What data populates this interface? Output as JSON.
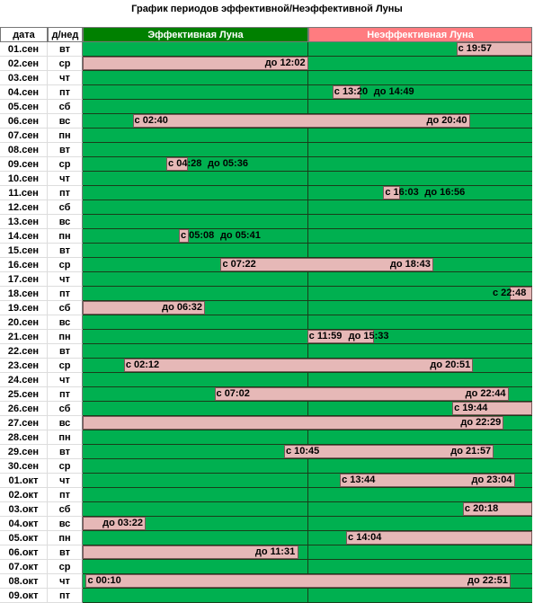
{
  "title": "График  периодов эффективной/Неэффективной Луны",
  "headers": {
    "date": "дата",
    "weekday": "д/нед",
    "effective": "Эффективная Луна",
    "ineffective": "Неэффективная Луна"
  },
  "colors": {
    "effective_green": "#00b050",
    "ineffective_pink": "#e6b8b7",
    "header_green": "#008000",
    "header_red": "#ff7c80"
  },
  "rows": [
    {
      "date": "01.сен",
      "day": "вт",
      "segments": [
        {
          "from": "19:57",
          "to": null
        }
      ],
      "labels": [
        "с 19:57"
      ]
    },
    {
      "date": "02.сен",
      "day": "ср",
      "segments": [
        {
          "from": null,
          "to": "12:02"
        }
      ],
      "labels": [
        "до 12:02"
      ]
    },
    {
      "date": "03.сен",
      "day": "чт",
      "segments": [],
      "labels": []
    },
    {
      "date": "04.сен",
      "day": "пт",
      "segments": [
        {
          "from": "13:20",
          "to": "14:49"
        }
      ],
      "labels": [
        "с 13:20",
        "до 14:49"
      ]
    },
    {
      "date": "05.сен",
      "day": "сб",
      "segments": [],
      "labels": []
    },
    {
      "date": "06.сен",
      "day": "вс",
      "segments": [
        {
          "from": "02:40",
          "to": "20:40"
        }
      ],
      "labels": [
        "с 02:40",
        "до 20:40"
      ]
    },
    {
      "date": "07.сен",
      "day": "пн",
      "segments": [],
      "labels": []
    },
    {
      "date": "08.сен",
      "day": "вт",
      "segments": [],
      "labels": []
    },
    {
      "date": "09.сен",
      "day": "ср",
      "segments": [
        {
          "from": "04:28",
          "to": "05:36"
        }
      ],
      "labels": [
        "с 04:28",
        "до 05:36"
      ]
    },
    {
      "date": "10.сен",
      "day": "чт",
      "segments": [],
      "labels": []
    },
    {
      "date": "11.сен",
      "day": "пт",
      "segments": [
        {
          "from": "16:03",
          "to": "16:56"
        }
      ],
      "labels": [
        "с 16:03",
        "до 16:56"
      ]
    },
    {
      "date": "12.сен",
      "day": "сб",
      "segments": [],
      "labels": []
    },
    {
      "date": "13.сен",
      "day": "вс",
      "segments": [],
      "labels": []
    },
    {
      "date": "14.сен",
      "day": "пн",
      "segments": [
        {
          "from": "05:08",
          "to": "05:41"
        }
      ],
      "labels": [
        "с 05:08",
        "до 05:41"
      ]
    },
    {
      "date": "15.сен",
      "day": "вт",
      "segments": [],
      "labels": []
    },
    {
      "date": "16.сен",
      "day": "ср",
      "segments": [
        {
          "from": "07:22",
          "to": "18:43"
        }
      ],
      "labels": [
        "с 07:22",
        "до 18:43"
      ]
    },
    {
      "date": "17.сен",
      "day": "чт",
      "segments": [],
      "labels": []
    },
    {
      "date": "18.сен",
      "day": "пт",
      "segments": [
        {
          "from": "22:48",
          "to": null
        }
      ],
      "labels": [
        "с 22:48"
      ]
    },
    {
      "date": "19.сен",
      "day": "сб",
      "segments": [
        {
          "from": null,
          "to": "06:32"
        }
      ],
      "labels": [
        "до 06:32"
      ]
    },
    {
      "date": "20.сен",
      "day": "вс",
      "segments": [],
      "labels": []
    },
    {
      "date": "21.сен",
      "day": "пн",
      "segments": [
        {
          "from": "11:59",
          "to": "15:33"
        }
      ],
      "labels": [
        "с 11:59",
        "до 15:33"
      ]
    },
    {
      "date": "22.сен",
      "day": "вт",
      "segments": [],
      "labels": []
    },
    {
      "date": "23.сен",
      "day": "ср",
      "segments": [
        {
          "from": "02:12",
          "to": "20:51"
        }
      ],
      "labels": [
        "с 02:12",
        "до 20:51"
      ]
    },
    {
      "date": "24.сен",
      "day": "чт",
      "segments": [],
      "labels": []
    },
    {
      "date": "25.сен",
      "day": "пт",
      "segments": [
        {
          "from": "07:02",
          "to": "22:44"
        }
      ],
      "labels": [
        "с 07:02",
        "до 22:44"
      ]
    },
    {
      "date": "26.сен",
      "day": "сб",
      "segments": [
        {
          "from": "19:44",
          "to": null
        }
      ],
      "labels": [
        "с 19:44"
      ]
    },
    {
      "date": "27.сен",
      "day": "вс",
      "segments": [
        {
          "from": null,
          "to": "22:29"
        }
      ],
      "labels": [
        "до 22:29"
      ]
    },
    {
      "date": "28.сен",
      "day": "пн",
      "segments": [],
      "labels": []
    },
    {
      "date": "29.сен",
      "day": "вт",
      "segments": [
        {
          "from": "10:45",
          "to": "21:57"
        }
      ],
      "labels": [
        "с 10:45",
        "до 21:57"
      ]
    },
    {
      "date": "30.сен",
      "day": "ср",
      "segments": [],
      "labels": []
    },
    {
      "date": "01.окт",
      "day": "чт",
      "segments": [
        {
          "from": "13:44",
          "to": "23:04"
        }
      ],
      "labels": [
        "с 13:44",
        "до 23:04"
      ]
    },
    {
      "date": "02.окт",
      "day": "пт",
      "segments": [],
      "labels": []
    },
    {
      "date": "03.окт",
      "day": "сб",
      "segments": [
        {
          "from": "20:18",
          "to": null
        }
      ],
      "labels": [
        "с 20:18"
      ]
    },
    {
      "date": "04.окт",
      "day": "вс",
      "segments": [
        {
          "from": null,
          "to": "03:22"
        }
      ],
      "labels": [
        "до 03:22"
      ]
    },
    {
      "date": "05.окт",
      "day": "пн",
      "segments": [
        {
          "from": "14:04",
          "to": null
        }
      ],
      "labels": [
        "с 14:04"
      ]
    },
    {
      "date": "06.окт",
      "day": "вт",
      "segments": [
        {
          "from": null,
          "to": "11:31"
        }
      ],
      "labels": [
        "до 11:31"
      ]
    },
    {
      "date": "07.окт",
      "day": "ср",
      "segments": [],
      "labels": []
    },
    {
      "date": "08.окт",
      "day": "чт",
      "segments": [
        {
          "from": "00:10",
          "to": "22:51"
        }
      ],
      "labels": [
        "с 00:10",
        "до 22:51"
      ]
    },
    {
      "date": "09.окт",
      "day": "пт",
      "segments": [],
      "labels": []
    }
  ]
}
